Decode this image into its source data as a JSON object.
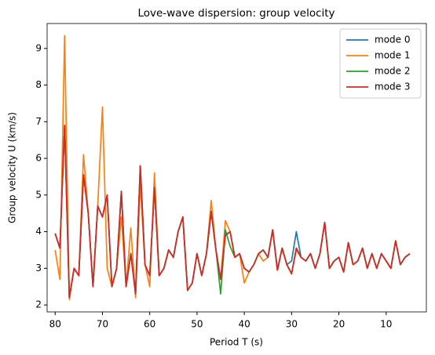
{
  "chart_data": {
    "type": "line",
    "title": "Love-wave dispersion: group velocity",
    "x_label": "Period T (s)",
    "y_label": "Group velocity U (km/s)",
    "x": [
      80,
      79,
      78,
      77,
      76,
      75,
      74,
      73,
      72,
      71,
      70,
      69,
      68,
      67,
      66,
      65,
      64,
      63,
      62,
      61,
      60,
      59,
      58,
      57,
      56,
      55,
      54,
      53,
      52,
      51,
      50,
      49,
      48,
      47,
      46,
      45,
      44,
      43,
      42,
      41,
      40,
      39,
      38,
      37,
      36,
      35,
      34,
      33,
      32,
      31,
      30,
      29,
      28,
      27,
      26,
      25,
      24,
      23,
      22,
      21,
      20,
      19,
      18,
      17,
      16,
      15,
      14,
      13,
      12,
      11,
      10,
      9,
      8,
      7,
      6,
      5
    ],
    "series": [
      {
        "name": "mode 0",
        "color": "#1f77b4",
        "values": [
          3.95,
          3.55,
          6.9,
          2.2,
          3.0,
          2.8,
          5.55,
          4.5,
          2.5,
          4.7,
          4.4,
          5.0,
          2.5,
          3.0,
          5.1,
          2.5,
          3.4,
          2.3,
          5.8,
          3.1,
          2.8,
          5.2,
          2.8,
          3.0,
          3.5,
          3.3,
          4.0,
          4.4,
          2.4,
          2.6,
          3.4,
          2.8,
          3.4,
          4.55,
          3.5,
          2.7,
          3.9,
          4.0,
          3.3,
          3.4,
          3.0,
          2.9,
          3.1,
          3.4,
          3.5,
          3.3,
          4.05,
          2.95,
          3.55,
          3.1,
          3.2,
          4.0,
          3.3,
          3.2,
          3.4,
          3.0,
          3.4,
          4.25,
          3.0,
          3.2,
          3.3,
          2.9,
          3.7,
          3.1,
          3.2,
          3.55,
          3.0,
          3.4,
          3.0,
          3.4,
          3.2,
          3.0,
          3.75,
          3.1,
          3.3,
          3.4
        ]
      },
      {
        "name": "mode 1",
        "color": "#ff7f0e",
        "values": [
          3.5,
          2.7,
          9.35,
          2.15,
          3.0,
          2.8,
          6.1,
          4.5,
          2.5,
          4.7,
          7.4,
          3.0,
          2.5,
          3.0,
          4.4,
          2.5,
          4.1,
          2.2,
          5.3,
          3.1,
          2.5,
          5.6,
          2.8,
          3.0,
          3.5,
          3.3,
          4.0,
          4.4,
          2.4,
          2.6,
          3.4,
          2.8,
          3.4,
          4.85,
          3.5,
          2.7,
          4.3,
          4.0,
          3.3,
          3.4,
          2.6,
          2.9,
          3.1,
          3.4,
          3.2,
          3.3,
          4.05,
          2.95,
          3.55,
          3.1,
          2.85,
          3.5,
          3.3,
          3.2,
          3.4,
          3.0,
          3.4,
          4.25,
          3.0,
          3.2,
          3.3,
          2.9,
          3.7,
          3.1,
          3.2,
          3.55,
          3.0,
          3.4,
          3.0,
          3.4,
          3.2,
          3.0,
          3.75,
          3.1,
          3.3,
          3.4
        ]
      },
      {
        "name": "mode 2",
        "color": "#2ca02c",
        "values": [
          3.95,
          3.55,
          6.9,
          2.2,
          3.0,
          2.8,
          5.55,
          4.5,
          2.5,
          4.7,
          4.4,
          5.0,
          2.5,
          3.0,
          5.1,
          2.5,
          3.4,
          2.3,
          5.8,
          3.1,
          2.8,
          5.2,
          2.8,
          3.0,
          3.5,
          3.3,
          4.0,
          4.4,
          2.4,
          2.6,
          3.4,
          2.8,
          3.4,
          4.55,
          3.5,
          2.3,
          4.05,
          3.6,
          3.3,
          3.4,
          3.0,
          2.9,
          3.1,
          3.4,
          3.5,
          3.3,
          4.05,
          2.95,
          3.55,
          3.1,
          2.85,
          3.55,
          3.3,
          3.2,
          3.4,
          3.0,
          3.4,
          4.25,
          3.0,
          3.2,
          3.3,
          2.9,
          3.7,
          3.1,
          3.2,
          3.55,
          3.0,
          3.4,
          3.0,
          3.4,
          3.2,
          3.0,
          3.75,
          3.1,
          3.3,
          3.4
        ]
      },
      {
        "name": "mode 3",
        "color": "#d62728",
        "values": [
          3.95,
          3.55,
          6.9,
          2.2,
          3.0,
          2.8,
          5.55,
          4.5,
          2.5,
          4.7,
          4.4,
          5.0,
          2.5,
          3.0,
          5.1,
          2.5,
          3.4,
          2.3,
          5.8,
          3.1,
          2.8,
          5.2,
          2.8,
          3.0,
          3.5,
          3.3,
          4.0,
          4.4,
          2.4,
          2.6,
          3.4,
          2.8,
          3.4,
          4.55,
          3.5,
          2.7,
          3.9,
          4.0,
          3.3,
          3.4,
          3.0,
          2.9,
          3.1,
          3.4,
          3.5,
          3.3,
          4.05,
          2.95,
          3.55,
          3.1,
          2.85,
          3.55,
          3.3,
          3.2,
          3.4,
          3.0,
          3.4,
          4.25,
          3.0,
          3.2,
          3.3,
          2.9,
          3.7,
          3.1,
          3.2,
          3.55,
          3.0,
          3.4,
          3.0,
          3.4,
          3.2,
          3.0,
          3.75,
          3.1,
          3.3,
          3.4
        ]
      }
    ],
    "xlim": [
      81.7,
      1.5
    ],
    "xticks": [
      80,
      70,
      60,
      50,
      40,
      30,
      20,
      10
    ],
    "ylim": [
      1.81,
      9.68
    ],
    "yticks": [
      2,
      3,
      4,
      5,
      6,
      7,
      8,
      9
    ],
    "grid": false,
    "legend": "upper right"
  }
}
